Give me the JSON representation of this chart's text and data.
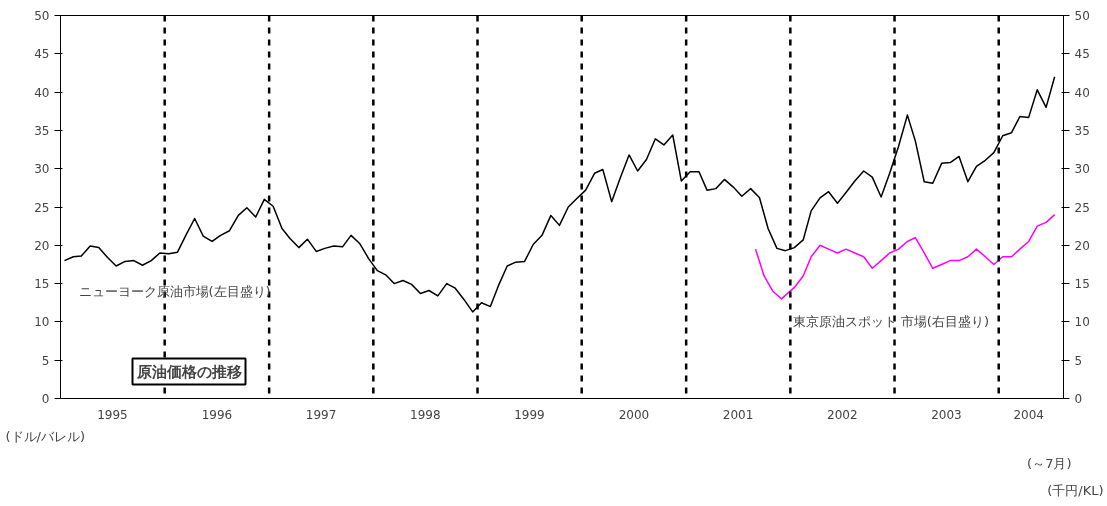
{
  "chart_data": {
    "type": "line",
    "title": "原油価格の推移",
    "ylabel": "(ドル/バレル)",
    "y2label": "(千円/KL)",
    "xlim": [
      "1995-01-01",
      "2004-08-15"
    ],
    "xticks": [
      {
        "value": "1995-07-02",
        "label": "1995"
      },
      {
        "value": "1996-07-02",
        "label": "1996"
      },
      {
        "value": "1997-07-02",
        "label": "1997"
      },
      {
        "value": "1998-07-02",
        "label": "1998"
      },
      {
        "value": "1999-07-02",
        "label": "1999"
      },
      {
        "value": "2000-07-02",
        "label": "2000"
      },
      {
        "value": "2001-07-02",
        "label": "2001"
      },
      {
        "value": "2002-07-02",
        "label": "2002"
      },
      {
        "value": "2003-07-02",
        "label": "2003"
      },
      {
        "value": "2004-04-15",
        "label": "2004"
      }
    ],
    "ylim": [
      0,
      50
    ],
    "yticks": [
      0,
      5,
      10,
      15,
      20,
      25,
      30,
      35,
      40,
      45,
      50
    ],
    "y2lim": [
      0,
      50
    ],
    "y2ticks": [
      0,
      5,
      10,
      15,
      20,
      25,
      30,
      35,
      40,
      45,
      50
    ],
    "grid": false,
    "line_style": "solid",
    "ref_lines": [
      {
        "axis": "x",
        "value": "1996-01-01",
        "line_style": "dashed",
        "color": "#000000"
      },
      {
        "axis": "x",
        "value": "1997-01-01",
        "line_style": "dashed",
        "color": "#000000"
      },
      {
        "axis": "x",
        "value": "1998-01-01",
        "line_style": "dashed",
        "color": "#000000"
      },
      {
        "axis": "x",
        "value": "1999-01-01",
        "line_style": "dashed",
        "color": "#000000"
      },
      {
        "axis": "x",
        "value": "2000-01-01",
        "line_style": "dashed",
        "color": "#000000"
      },
      {
        "axis": "x",
        "value": "2001-01-01",
        "line_style": "dashed",
        "color": "#000000"
      },
      {
        "axis": "x",
        "value": "2002-01-01",
        "line_style": "dashed",
        "color": "#000000"
      },
      {
        "axis": "x",
        "value": "2003-01-01",
        "line_style": "dashed",
        "color": "#000000"
      },
      {
        "axis": "x",
        "value": "2004-01-01",
        "line_style": "dashed",
        "color": "#000000"
      }
    ],
    "annotations": [
      "ニューヨーク原油市場(左目盛り)",
      "東京原油スポット 市場(右目盛り)",
      "(～7月)"
    ],
    "series": [
      {
        "color": "#000000",
        "x": [
          "1995-01-15",
          "1995-02-15",
          "1995-03-15",
          "1995-04-15",
          "1995-05-15",
          "1995-06-15",
          "1995-07-15",
          "1995-08-15",
          "1995-09-15",
          "1995-10-15",
          "1995-11-15",
          "1995-12-15",
          "1996-01-15",
          "1996-02-15",
          "1996-03-15",
          "1996-04-15",
          "1996-05-15",
          "1996-06-15",
          "1996-07-15",
          "1996-08-15",
          "1996-09-15",
          "1996-10-15",
          "1996-11-15",
          "1996-12-15",
          "1997-01-15",
          "1997-02-15",
          "1997-03-15",
          "1997-04-15",
          "1997-05-15",
          "1997-06-15",
          "1997-07-15",
          "1997-08-15",
          "1997-09-15",
          "1997-10-15",
          "1997-11-15",
          "1997-12-15",
          "1998-01-15",
          "1998-02-15",
          "1998-03-15",
          "1998-04-15",
          "1998-05-15",
          "1998-06-15",
          "1998-07-15",
          "1998-08-15",
          "1998-09-15",
          "1998-10-15",
          "1998-11-15",
          "1998-12-15",
          "1999-01-15",
          "1999-02-15",
          "1999-03-15",
          "1999-04-15",
          "1999-05-15",
          "1999-06-15",
          "1999-07-15",
          "1999-08-15",
          "1999-09-15",
          "1999-10-15",
          "1999-11-15",
          "1999-12-15",
          "2000-01-15",
          "2000-02-15",
          "2000-03-15",
          "2000-04-15",
          "2000-05-15",
          "2000-06-15",
          "2000-07-15",
          "2000-08-15",
          "2000-09-15",
          "2000-10-15",
          "2000-11-15",
          "2000-12-15",
          "2001-01-15",
          "2001-02-15",
          "2001-03-15",
          "2001-04-15",
          "2001-05-15",
          "2001-06-15",
          "2001-07-15",
          "2001-08-15",
          "2001-09-15",
          "2001-10-15",
          "2001-11-15",
          "2001-12-15",
          "2002-01-15",
          "2002-02-15",
          "2002-03-15",
          "2002-04-15",
          "2002-05-15",
          "2002-06-15",
          "2002-07-15",
          "2002-08-15",
          "2002-09-15",
          "2002-10-15",
          "2002-11-15",
          "2002-12-15",
          "2003-01-15",
          "2003-02-15",
          "2003-03-15",
          "2003-04-15",
          "2003-05-15",
          "2003-06-15",
          "2003-07-15",
          "2003-08-15",
          "2003-09-15",
          "2003-10-15",
          "2003-11-15",
          "2003-12-15",
          "2004-01-15",
          "2004-02-15",
          "2004-03-15",
          "2004-04-15",
          "2004-05-15",
          "2004-06-15",
          "2004-07-15"
        ],
        "values": [
          18,
          18.5,
          18.6,
          19.9,
          19.7,
          18.4,
          17.3,
          17.9,
          18,
          17.4,
          18,
          19,
          18.9,
          19.1,
          21.3,
          23.5,
          21.2,
          20.5,
          21.3,
          21.9,
          23.9,
          24.9,
          23.7,
          26,
          25.1,
          22.2,
          20.9,
          19.7,
          20.8,
          19.2,
          19.6,
          19.9,
          19.8,
          21.3,
          20.2,
          18.3,
          16.7,
          16.1,
          15,
          15.4,
          14.9,
          13.7,
          14.1,
          13.4,
          15,
          14.4,
          12.9,
          11.3,
          12.5,
          12,
          14.7,
          17.3,
          17.8,
          17.9,
          20.1,
          21.3,
          23.9,
          22.6,
          25,
          26.1,
          27.2,
          29.4,
          29.9,
          25.7,
          28.8,
          31.8,
          29.7,
          31.2,
          33.9,
          33.1,
          34.4,
          28.4,
          29.6,
          29.6,
          27.2,
          27.4,
          28.6,
          27.6,
          26.4,
          27.4,
          26.2,
          22.2,
          19.6,
          19.3,
          19.7,
          20.7,
          24.5,
          26.2,
          27,
          25.5,
          26.9,
          28.4,
          29.7,
          28.9,
          26.3,
          29.4,
          32.9,
          37,
          33.6,
          28.3,
          28.1,
          30.7,
          30.8,
          31.6,
          28.3,
          30.3,
          31.1,
          32.1,
          34.3,
          34.7,
          36.8,
          36.7,
          40.3,
          38,
          42
        ]
      },
      {
        "color": "#ff00ff",
        "axis": "y2",
        "x": [
          "2001-09-01",
          "2001-10-01",
          "2001-11-01",
          "2001-12-01",
          "2002-01-15",
          "2002-02-15",
          "2002-03-15",
          "2002-04-15",
          "2002-05-15",
          "2002-06-15",
          "2002-07-15",
          "2002-08-15",
          "2002-09-15",
          "2002-10-15",
          "2002-11-15",
          "2002-12-15",
          "2003-01-15",
          "2003-02-15",
          "2003-03-15",
          "2003-04-15",
          "2003-05-15",
          "2003-06-15",
          "2003-07-15",
          "2003-08-15",
          "2003-09-15",
          "2003-10-15",
          "2003-11-15",
          "2003-12-15",
          "2004-01-15",
          "2004-02-15",
          "2004-03-15",
          "2004-04-15",
          "2004-05-15",
          "2004-06-15",
          "2004-07-15"
        ],
        "values": [
          19.5,
          16,
          14,
          13,
          14.5,
          16,
          18.5,
          20,
          19.5,
          19,
          19.5,
          19,
          18.5,
          17,
          18,
          19,
          19.5,
          20.5,
          21,
          19,
          17,
          17.5,
          18,
          18,
          18.5,
          19.5,
          18.5,
          17.5,
          18.5,
          18.5,
          19.5,
          20.5,
          22.5,
          23,
          24
        ]
      }
    ]
  }
}
